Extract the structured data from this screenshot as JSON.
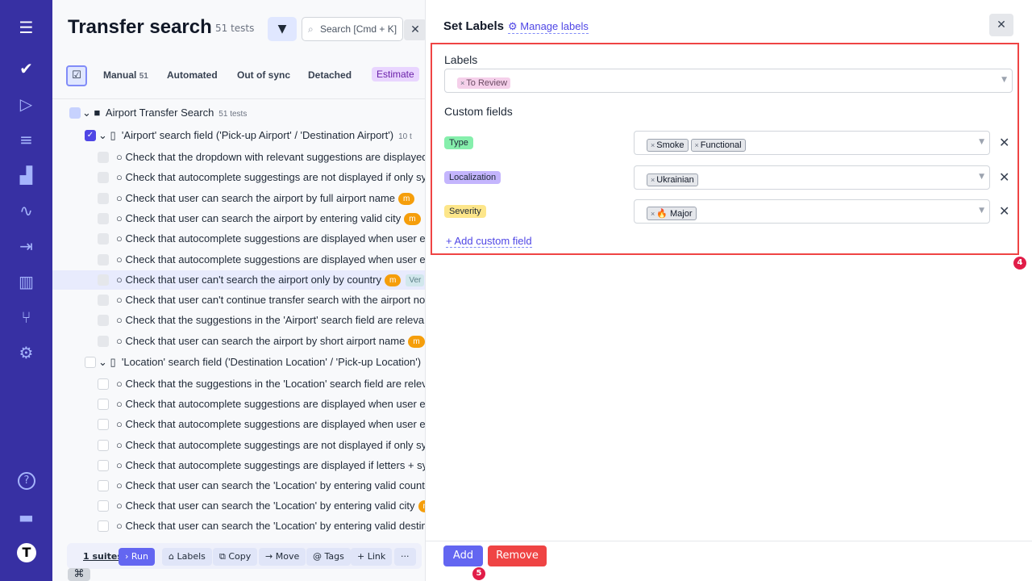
{
  "sidebar": {
    "items": [
      {
        "icon": "menu-icon",
        "glyph": "☰"
      },
      {
        "icon": "check-icon",
        "glyph": "✔"
      },
      {
        "icon": "play-circle-icon",
        "glyph": "▷"
      },
      {
        "icon": "checklist-icon",
        "glyph": "≡"
      },
      {
        "icon": "stairs-icon",
        "glyph": "▟"
      },
      {
        "icon": "pulse-icon",
        "glyph": "∿"
      },
      {
        "icon": "import-icon",
        "glyph": "⇥"
      },
      {
        "icon": "chart-icon",
        "glyph": "▥"
      },
      {
        "icon": "branch-icon",
        "glyph": "⑂"
      },
      {
        "icon": "gear-icon",
        "glyph": "⚙"
      },
      {
        "icon": "help-icon",
        "glyph": "?"
      },
      {
        "icon": "folder-icon",
        "glyph": "▬"
      },
      {
        "icon": "avatar-icon",
        "glyph": "T"
      }
    ]
  },
  "header": {
    "title": "Transfer search",
    "count": "51 tests",
    "search_placeholder": "Search [Cmd + K]"
  },
  "tabs": [
    {
      "label": "Manual",
      "count": "51"
    },
    {
      "label": "Automated"
    },
    {
      "label": "Out of sync"
    },
    {
      "label": "Detached"
    },
    {
      "label": "Estimate"
    }
  ],
  "tree": {
    "folder": {
      "name": "Airport Transfer Search",
      "count": "51 tests"
    },
    "suite1": {
      "name": "'Airport' search field ('Pick-up Airport' / 'Destination Airport')",
      "count": "10 t"
    },
    "tests1": [
      {
        "title": "Check that the dropdown with relevant suggestions are displayed"
      },
      {
        "title": "Check that autocomplete suggestings are not displayed if only symbols"
      },
      {
        "title": "Check that user can search the airport by full airport name",
        "badge": "m"
      },
      {
        "title": "Check that user can search the airport by entering valid city",
        "badge": "m"
      },
      {
        "title": "Check that autocomplete suggestions are displayed when user enters"
      },
      {
        "title": "Check that autocomplete suggestions are displayed when user enters"
      },
      {
        "title": "Check that user can't search the airport only by country",
        "badge": "m",
        "tag": "Ver"
      },
      {
        "title": "Check that user can't continue transfer search with the airport not"
      },
      {
        "title": "Check that the suggestions in the 'Airport' search field are relevant"
      },
      {
        "title": "Check that user can search the airport by short airport name",
        "badge": "m"
      }
    ],
    "suite2": {
      "name": "'Location' search field ('Destination Location' / 'Pick-up Location')"
    },
    "tests2": [
      {
        "title": "Check that the suggestions in the 'Location' search field are relevant"
      },
      {
        "title": "Check that autocomplete suggestions are displayed when user enters"
      },
      {
        "title": "Check that autocomplete suggestions are displayed when user enters"
      },
      {
        "title": "Check that autocomplete suggestings are not displayed if only symbols"
      },
      {
        "title": "Check that autocomplete suggestings are displayed if letters + symbols"
      },
      {
        "title": "Check that user can search the 'Location' by entering valid country"
      },
      {
        "title": "Check that user can search the 'Location' by entering valid city",
        "badge": "m"
      },
      {
        "title": "Check that user can search the 'Location' by entering valid destination"
      }
    ]
  },
  "bulk": {
    "selected": "1 suites",
    "run": "Run",
    "labels": "Labels",
    "copy": "Copy",
    "move": "Move",
    "tags": "Tags",
    "link": "Link",
    "more": "···",
    "cmd": "⌘"
  },
  "panel": {
    "title": "Set Labels",
    "manage": "Manage labels",
    "labels_heading": "Labels",
    "labels": [
      "To Review"
    ],
    "custom_heading": "Custom fields",
    "fields": [
      {
        "name": "Type",
        "color": "#86efac",
        "values": [
          "Smoke",
          "Functional"
        ]
      },
      {
        "name": "Localization",
        "color": "#c4b5fd",
        "values": [
          "Ukrainian"
        ]
      },
      {
        "name": "Severity",
        "color": "#fde68a",
        "values": [
          "🔥 Major"
        ]
      }
    ],
    "add_field": "Add custom field",
    "add": "Add",
    "remove": "Remove",
    "step4": "4",
    "step5": "5"
  }
}
